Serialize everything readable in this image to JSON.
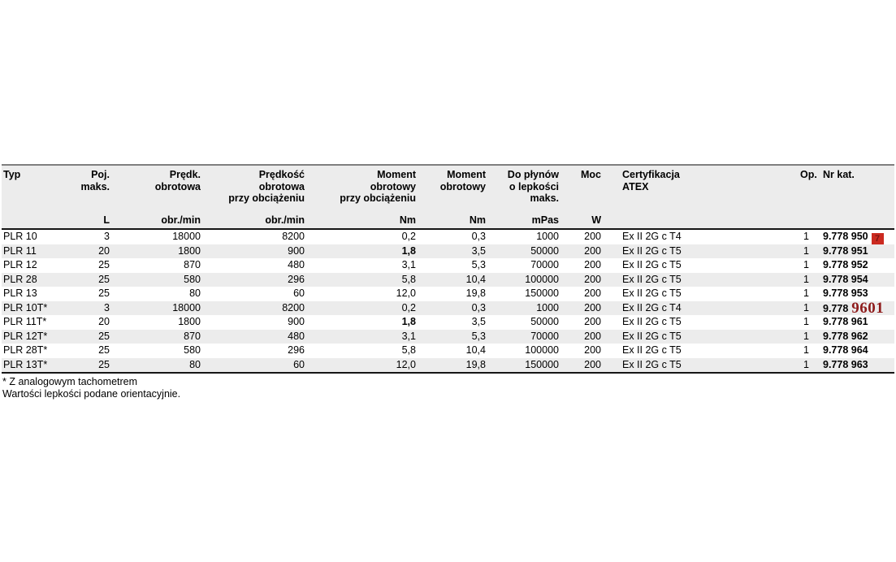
{
  "table": {
    "columns": [
      {
        "key": "typ",
        "label": [
          "Typ"
        ],
        "unit": "",
        "align": "left"
      },
      {
        "key": "poj",
        "label": [
          "Poj.",
          "maks."
        ],
        "unit": "L",
        "align": "right"
      },
      {
        "key": "predk",
        "label": [
          "Prędk.",
          "obrotowa"
        ],
        "unit": "obr./min",
        "align": "right"
      },
      {
        "key": "predk_obc",
        "label": [
          "Prędkość",
          "obrotowa",
          "przy obciążeniu"
        ],
        "unit": "obr./min",
        "align": "right"
      },
      {
        "key": "moment_obc",
        "label": [
          "Moment",
          "obrotowy",
          "przy obciążeniu"
        ],
        "unit": "Nm",
        "align": "right"
      },
      {
        "key": "moment",
        "label": [
          "Moment",
          "obrotowy"
        ],
        "unit": "Nm",
        "align": "right"
      },
      {
        "key": "lepkosc",
        "label": [
          "Do płynów",
          "o lepkości",
          "maks."
        ],
        "unit": "mPas",
        "align": "right"
      },
      {
        "key": "moc",
        "label": [
          "Moc"
        ],
        "unit": "W",
        "align": "right"
      },
      {
        "key": "atex",
        "label": [
          "Certyfikacja",
          "ATEX"
        ],
        "unit": "",
        "align": "left"
      },
      {
        "key": "op",
        "label": [
          "Op."
        ],
        "unit": "",
        "align": "right"
      },
      {
        "key": "nrkat",
        "label": [
          "Nr kat."
        ],
        "unit": "",
        "align": "left"
      }
    ],
    "rows": [
      {
        "typ": "PLR 10",
        "poj": "3",
        "predk": "18000",
        "predk_obc": "8200",
        "moment_obc": "0,2",
        "moment": "0,3",
        "lepkosc": "1000",
        "moc": "200",
        "atex": "Ex II 2G c T4",
        "op": "1",
        "nrkat": "9.778 950",
        "marker": "7"
      },
      {
        "typ": "PLR 11",
        "poj": "20",
        "predk": "1800",
        "predk_obc": "900",
        "moment_obc": "1,8",
        "moment": "3,5",
        "lepkosc": "50000",
        "moc": "200",
        "atex": "Ex II 2G c T5",
        "op": "1",
        "nrkat": "9.778 951",
        "moment_obc_bold": true
      },
      {
        "typ": "PLR 12",
        "poj": "25",
        "predk": "870",
        "predk_obc": "480",
        "moment_obc": "3,1",
        "moment": "5,3",
        "lepkosc": "70000",
        "moc": "200",
        "atex": "Ex II 2G c T5",
        "op": "1",
        "nrkat": "9.778 952"
      },
      {
        "typ": "PLR 28",
        "poj": "25",
        "predk": "580",
        "predk_obc": "296",
        "moment_obc": "5,8",
        "moment": "10,4",
        "lepkosc": "100000",
        "moc": "200",
        "atex": "Ex II 2G c T5",
        "op": "1",
        "nrkat": "9.778 954"
      },
      {
        "typ": "PLR 13",
        "poj": "25",
        "predk": "80",
        "predk_obc": "60",
        "moment_obc": "12,0",
        "moment": "19,8",
        "lepkosc": "150000",
        "moc": "200",
        "atex": "Ex II 2G c T5",
        "op": "1",
        "nrkat": "9.778 953"
      },
      {
        "typ": "PLR 10T*",
        "poj": "3",
        "predk": "18000",
        "predk_obc": "8200",
        "moment_obc": "0,2",
        "moment": "0,3",
        "lepkosc": "1000",
        "moc": "200",
        "atex": "Ex II 2G c T4",
        "op": "1",
        "nrkat": "9.778",
        "nrkat_red": "9601"
      },
      {
        "typ": "PLR 11T*",
        "poj": "20",
        "predk": "1800",
        "predk_obc": "900",
        "moment_obc": "1,8",
        "moment": "3,5",
        "lepkosc": "50000",
        "moc": "200",
        "atex": "Ex II 2G c T5",
        "op": "1",
        "nrkat": "9.778 961",
        "moment_obc_bold": true
      },
      {
        "typ": "PLR 12T*",
        "poj": "25",
        "predk": "870",
        "predk_obc": "480",
        "moment_obc": "3,1",
        "moment": "5,3",
        "lepkosc": "70000",
        "moc": "200",
        "atex": "Ex II 2G c T5",
        "op": "1",
        "nrkat": "9.778 962"
      },
      {
        "typ": "PLR 28T*",
        "poj": "25",
        "predk": "580",
        "predk_obc": "296",
        "moment_obc": "5,8",
        "moment": "10,4",
        "lepkosc": "100000",
        "moc": "200",
        "atex": "Ex II 2G c T5",
        "op": "1",
        "nrkat": "9.778 964"
      },
      {
        "typ": "PLR 13T*",
        "poj": "25",
        "predk": "80",
        "predk_obc": "60",
        "moment_obc": "12,0",
        "moment": "19,8",
        "lepkosc": "150000",
        "moc": "200",
        "atex": "Ex II 2G c T5",
        "op": "1",
        "nrkat": "9.778 963"
      }
    ]
  },
  "footnotes": {
    "line1": "* Z analogowym tachometrem",
    "line2": "Wartości lepkości podane orientacyjnie."
  },
  "annotations": {
    "marker_badge_text": "7",
    "red_correction_text": "9601"
  },
  "colors": {
    "header_bg": "#ececec",
    "row_stripe": "#ececec",
    "table_top_border": "#7f7f7f",
    "table_dark_border": "#161616",
    "marker_bg": "#cb2a20",
    "marker_fg": "#7c1412",
    "red_text": "#8e1b1b"
  }
}
